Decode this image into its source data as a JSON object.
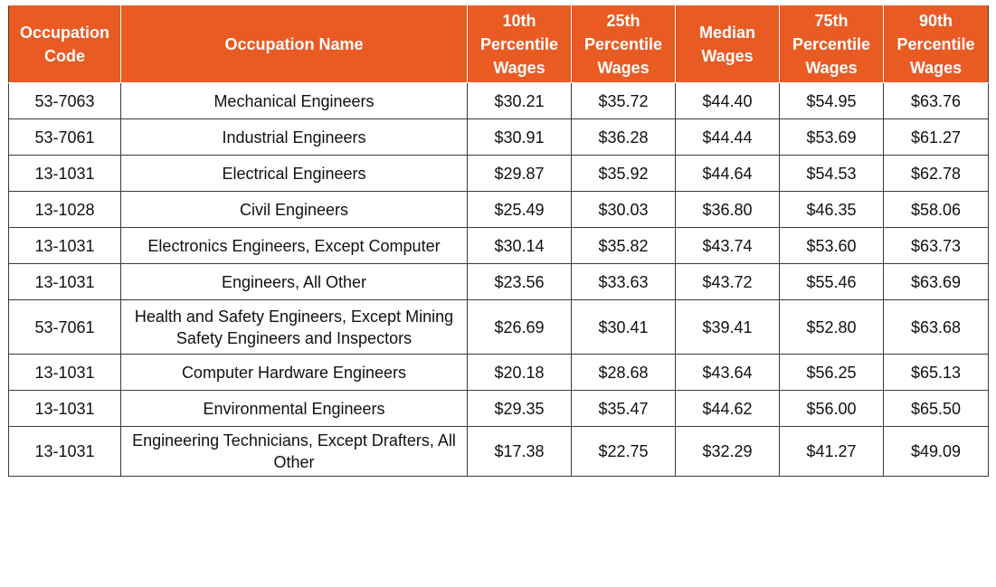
{
  "colors": {
    "header_background": "#ea5a23",
    "header_text": "#ffffff",
    "grid": "#3a3a3a"
  },
  "chart_data": {
    "type": "table",
    "columns": [
      "Occupation Code",
      "Occupation Name",
      "10th Percentile Wages",
      "25th Percentile Wages",
      "Median Wages",
      "75th Percentile Wages",
      "90th Percentile Wages"
    ],
    "rows": [
      [
        "53-7063",
        "Mechanical Engineers",
        "$30.21",
        "$35.72",
        "$44.40",
        "$54.95",
        "$63.76"
      ],
      [
        "53-7061",
        "Industrial Engineers",
        "$30.91",
        "$36.28",
        "$44.44",
        "$53.69",
        "$61.27"
      ],
      [
        "13-1031",
        "Electrical Engineers",
        "$29.87",
        "$35.92",
        "$44.64",
        "$54.53",
        "$62.78"
      ],
      [
        "13-1028",
        "Civil Engineers",
        "$25.49",
        "$30.03",
        "$36.80",
        "$46.35",
        "$58.06"
      ],
      [
        "13-1031",
        "Electronics Engineers, Except Computer",
        "$30.14",
        "$35.82",
        "$43.74",
        "$53.60",
        "$63.73"
      ],
      [
        "13-1031",
        "Engineers, All Other",
        "$23.56",
        "$33.63",
        "$43.72",
        "$55.46",
        "$63.69"
      ],
      [
        "53-7061",
        "Health and Safety Engineers, Except Mining Safety Engineers and Inspectors",
        "$26.69",
        "$30.41",
        "$39.41",
        "$52.80",
        "$63.68"
      ],
      [
        "13-1031",
        "Computer Hardware Engineers",
        "$20.18",
        "$28.68",
        "$43.64",
        "$56.25",
        "$65.13"
      ],
      [
        "13-1031",
        "Environmental Engineers",
        "$29.35",
        "$35.47",
        "$44.62",
        "$56.00",
        "$65.50"
      ],
      [
        "13-1031",
        "Engineering Technicians, Except Drafters, All Other",
        "$17.38",
        "$22.75",
        "$32.29",
        "$41.27",
        "$49.09"
      ]
    ]
  }
}
